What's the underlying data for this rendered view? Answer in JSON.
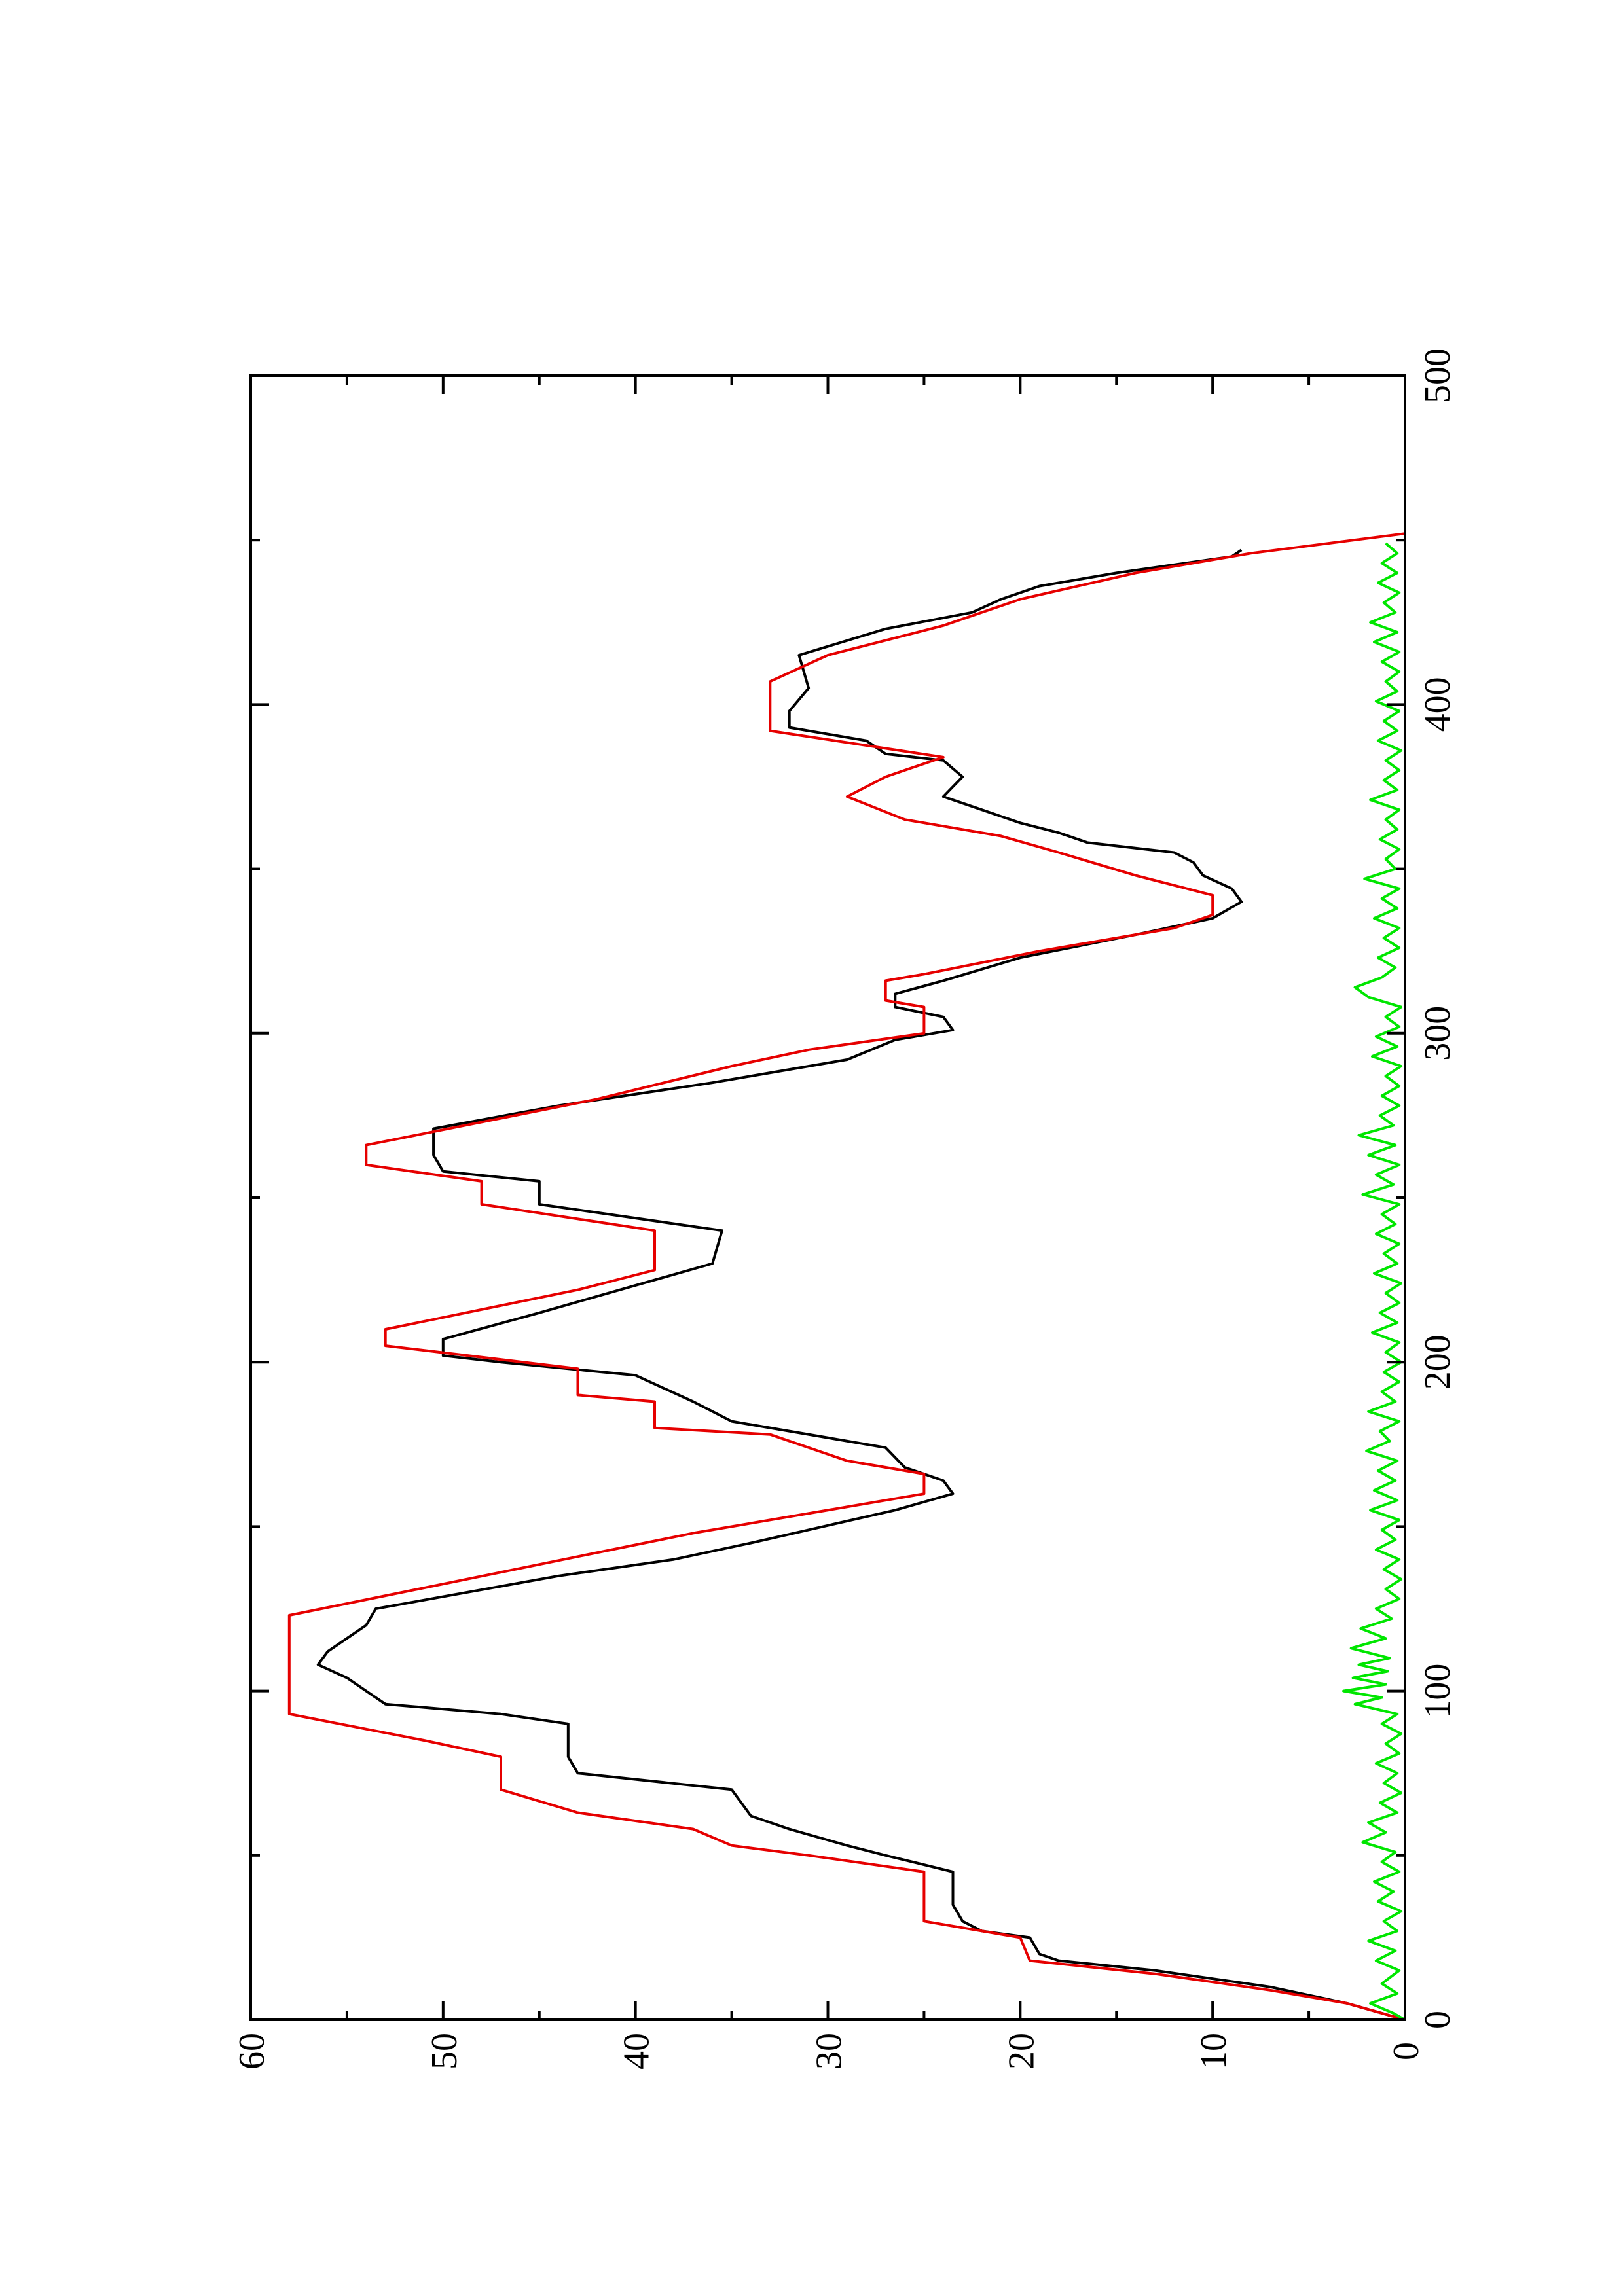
{
  "chart_data": {
    "type": "line",
    "orientation": "rotated 90 degrees counter-clockwise (x axis runs up the page)",
    "title": "",
    "xlabel": "",
    "ylabel": "",
    "xlim": [
      0,
      500
    ],
    "ylim": [
      0,
      60
    ],
    "x_ticks_major": [
      0,
      100,
      200,
      300,
      400,
      500
    ],
    "x_ticks_minor": [
      50,
      150,
      250,
      350,
      450
    ],
    "y_ticks_major": [
      0,
      10,
      20,
      30,
      40,
      50,
      60
    ],
    "y_ticks_minor": [
      5,
      15,
      25,
      35,
      45,
      55
    ],
    "grid": false,
    "legend": "none",
    "series": [
      {
        "color": "#000000",
        "points": [
          [
            0,
            0
          ],
          [
            5,
            3
          ],
          [
            10,
            7
          ],
          [
            15,
            13
          ],
          [
            18,
            18
          ],
          [
            20,
            19
          ],
          [
            25,
            19.5
          ],
          [
            27,
            22
          ],
          [
            30,
            23
          ],
          [
            35,
            23.5
          ],
          [
            45,
            23.5
          ],
          [
            50,
            27
          ],
          [
            53,
            29
          ],
          [
            58,
            32
          ],
          [
            62,
            34
          ],
          [
            70,
            35
          ],
          [
            75,
            43
          ],
          [
            80,
            43.5
          ],
          [
            90,
            43.5
          ],
          [
            93,
            47
          ],
          [
            96,
            53
          ],
          [
            100,
            54
          ],
          [
            104,
            55
          ],
          [
            108,
            56.5
          ],
          [
            112,
            56
          ],
          [
            116,
            55
          ],
          [
            120,
            54
          ],
          [
            125,
            53.5
          ],
          [
            135,
            44
          ],
          [
            140,
            38
          ],
          [
            145,
            34
          ],
          [
            155,
            26.5
          ],
          [
            160,
            23.5
          ],
          [
            164,
            24
          ],
          [
            168,
            26
          ],
          [
            174,
            27
          ],
          [
            182,
            35
          ],
          [
            188,
            37
          ],
          [
            196,
            40
          ],
          [
            200,
            47
          ],
          [
            202,
            50
          ],
          [
            207,
            50
          ],
          [
            215,
            45
          ],
          [
            225,
            39
          ],
          [
            230,
            36
          ],
          [
            240,
            35.5
          ],
          [
            248,
            45
          ],
          [
            255,
            45
          ],
          [
            258,
            50
          ],
          [
            263,
            50.5
          ],
          [
            271,
            50.5
          ],
          [
            278,
            44
          ],
          [
            285,
            36
          ],
          [
            292,
            29
          ],
          [
            298,
            26.5
          ],
          [
            301,
            23.5
          ],
          [
            305,
            24
          ],
          [
            308,
            26.5
          ],
          [
            312,
            26.5
          ],
          [
            316,
            24
          ],
          [
            323,
            20
          ],
          [
            330,
            14
          ],
          [
            335,
            10
          ],
          [
            340,
            8.5
          ],
          [
            344,
            9
          ],
          [
            348,
            10.5
          ],
          [
            352,
            11
          ],
          [
            355,
            12
          ],
          [
            358,
            16.5
          ],
          [
            361,
            18
          ],
          [
            364,
            20
          ],
          [
            368,
            22
          ],
          [
            372,
            24
          ],
          [
            378,
            23
          ],
          [
            383,
            24
          ],
          [
            385,
            27
          ],
          [
            389,
            28
          ],
          [
            393,
            32
          ],
          [
            398,
            32
          ],
          [
            405,
            31
          ],
          [
            415,
            31.5
          ],
          [
            423,
            27
          ],
          [
            428,
            22.5
          ],
          [
            432,
            21
          ],
          [
            436,
            19
          ],
          [
            440,
            15
          ],
          [
            445,
            9
          ],
          [
            447,
            8.5
          ]
        ]
      },
      {
        "color": "#e60000",
        "points": [
          [
            0,
            0
          ],
          [
            5,
            3
          ],
          [
            9,
            7
          ],
          [
            14,
            13
          ],
          [
            18,
            19.5
          ],
          [
            25,
            20
          ],
          [
            30,
            25
          ],
          [
            45,
            25
          ],
          [
            50,
            31
          ],
          [
            53,
            35
          ],
          [
            58,
            37
          ],
          [
            63,
            43
          ],
          [
            70,
            47
          ],
          [
            80,
            47
          ],
          [
            85,
            51
          ],
          [
            93,
            58
          ],
          [
            123,
            58
          ],
          [
            148,
            37
          ],
          [
            160,
            25
          ],
          [
            166,
            25
          ],
          [
            170,
            29
          ],
          [
            178,
            33
          ],
          [
            180,
            39
          ],
          [
            188,
            39
          ],
          [
            190,
            43
          ],
          [
            198,
            43
          ],
          [
            205,
            53
          ],
          [
            210,
            53
          ],
          [
            222,
            43
          ],
          [
            228,
            39
          ],
          [
            240,
            39
          ],
          [
            248,
            48
          ],
          [
            255,
            48
          ],
          [
            260,
            54
          ],
          [
            266,
            54
          ],
          [
            280,
            42
          ],
          [
            290,
            35
          ],
          [
            295,
            31
          ],
          [
            300,
            25
          ],
          [
            308,
            25
          ],
          [
            310,
            27
          ],
          [
            316,
            27
          ],
          [
            318,
            25
          ],
          [
            325,
            19
          ],
          [
            332,
            12
          ],
          [
            336,
            10
          ],
          [
            342,
            10
          ],
          [
            348,
            14
          ],
          [
            355,
            18
          ],
          [
            360,
            21
          ],
          [
            365,
            26
          ],
          [
            372,
            29
          ],
          [
            378,
            27
          ],
          [
            384,
            24
          ],
          [
            392,
            33
          ],
          [
            407,
            33
          ],
          [
            415,
            30
          ],
          [
            424,
            24
          ],
          [
            432,
            20
          ],
          [
            440,
            14
          ],
          [
            446,
            8
          ],
          [
            452,
            0
          ]
        ]
      },
      {
        "color": "#00e600",
        "points": [
          [
            0,
            0
          ],
          [
            2,
            0.6
          ],
          [
            5,
            1.8
          ],
          [
            8,
            0.4
          ],
          [
            11,
            1.2
          ],
          [
            15,
            0.3
          ],
          [
            18,
            1.5
          ],
          [
            21,
            0.5
          ],
          [
            24,
            1.9
          ],
          [
            27,
            0.4
          ],
          [
            30,
            1.1
          ],
          [
            33,
            0.2
          ],
          [
            36,
            1.4
          ],
          [
            39,
            0.6
          ],
          [
            42,
            1.6
          ],
          [
            45,
            0.3
          ],
          [
            48,
            1.2
          ],
          [
            51,
            0.5
          ],
          [
            54,
            2.2
          ],
          [
            57,
            1
          ],
          [
            60,
            1.9
          ],
          [
            63,
            0.4
          ],
          [
            66,
            1.3
          ],
          [
            69,
            0.2
          ],
          [
            72,
            1.1
          ],
          [
            75,
            0.4
          ],
          [
            78,
            1.5
          ],
          [
            81,
            0.3
          ],
          [
            84,
            1
          ],
          [
            87,
            0.2
          ],
          [
            90,
            1.2
          ],
          [
            93,
            0.4
          ],
          [
            96,
            2.6
          ],
          [
            98,
            1.2
          ],
          [
            100,
            3.2
          ],
          [
            102,
            1
          ],
          [
            104,
            2.7
          ],
          [
            106,
            0.9
          ],
          [
            108,
            2.4
          ],
          [
            110,
            0.8
          ],
          [
            113,
            2.8
          ],
          [
            116,
            1
          ],
          [
            119,
            2.3
          ],
          [
            122,
            0.7
          ],
          [
            125,
            1.5
          ],
          [
            128,
            0.3
          ],
          [
            131,
            1
          ],
          [
            134,
            0.2
          ],
          [
            137,
            1.1
          ],
          [
            140,
            0.3
          ],
          [
            143,
            1.5
          ],
          [
            146,
            0.5
          ],
          [
            149,
            1.2
          ],
          [
            152,
            0.3
          ],
          [
            155,
            1.8
          ],
          [
            158,
            0.4
          ],
          [
            161,
            1.6
          ],
          [
            164,
            0.5
          ],
          [
            167,
            1.4
          ],
          [
            170,
            0.4
          ],
          [
            173,
            2
          ],
          [
            176,
            0.8
          ],
          [
            179,
            1.3
          ],
          [
            182,
            0.3
          ],
          [
            185,
            1.9
          ],
          [
            188,
            0.5
          ],
          [
            191,
            1.2
          ],
          [
            194,
            0.3
          ],
          [
            197,
            1.1
          ],
          [
            200,
            0.2
          ],
          [
            203,
            1
          ],
          [
            206,
            0.3
          ],
          [
            209,
            1.7
          ],
          [
            212,
            0.4
          ],
          [
            215,
            1.3
          ],
          [
            218,
            0.3
          ],
          [
            221,
            1
          ],
          [
            224,
            0.2
          ],
          [
            227,
            1.6
          ],
          [
            230,
            0.4
          ],
          [
            233,
            1.1
          ],
          [
            236,
            0.3
          ],
          [
            239,
            1.5
          ],
          [
            242,
            0.5
          ],
          [
            245,
            1.2
          ],
          [
            248,
            0.3
          ],
          [
            251,
            2.2
          ],
          [
            254,
            0.6
          ],
          [
            257,
            1.5
          ],
          [
            260,
            0.3
          ],
          [
            263,
            1.9
          ],
          [
            266,
            0.5
          ],
          [
            269,
            2.4
          ],
          [
            272,
            0.6
          ],
          [
            275,
            1.3
          ],
          [
            278,
            0.3
          ],
          [
            281,
            1.2
          ],
          [
            284,
            0.3
          ],
          [
            287,
            1
          ],
          [
            290,
            0.2
          ],
          [
            293,
            1.7
          ],
          [
            296,
            0.4
          ],
          [
            299,
            1.5
          ],
          [
            302,
            0.3
          ],
          [
            305,
            1
          ],
          [
            308,
            0.2
          ],
          [
            311,
            1.9
          ],
          [
            314,
            2.6
          ],
          [
            317,
            1.2
          ],
          [
            320,
            0.5
          ],
          [
            323,
            1.4
          ],
          [
            326,
            0.3
          ],
          [
            329,
            1.1
          ],
          [
            332,
            0.3
          ],
          [
            335,
            1.6
          ],
          [
            338,
            0.4
          ],
          [
            341,
            1.2
          ],
          [
            344,
            0.3
          ],
          [
            347,
            2.1
          ],
          [
            350,
            0.5
          ],
          [
            353,
            1
          ],
          [
            356,
            0.3
          ],
          [
            359,
            1.3
          ],
          [
            362,
            0.4
          ],
          [
            365,
            1
          ],
          [
            368,
            0.3
          ],
          [
            371,
            1.8
          ],
          [
            374,
            0.4
          ],
          [
            377,
            1.1
          ],
          [
            380,
            0.3
          ],
          [
            383,
            1
          ],
          [
            386,
            0.2
          ],
          [
            389,
            1.4
          ],
          [
            392,
            0.4
          ],
          [
            395,
            1.1
          ],
          [
            398,
            0.3
          ],
          [
            401,
            1.5
          ],
          [
            404,
            0.4
          ],
          [
            407,
            1
          ],
          [
            410,
            0.3
          ],
          [
            413,
            1.2
          ],
          [
            416,
            0.3
          ],
          [
            419,
            1.6
          ],
          [
            422,
            0.4
          ],
          [
            425,
            1.8
          ],
          [
            428,
            0.5
          ],
          [
            431,
            1.1
          ],
          [
            434,
            0.3
          ],
          [
            437,
            1.4
          ],
          [
            440,
            0.4
          ],
          [
            443,
            1.2
          ],
          [
            446,
            0.4
          ],
          [
            449,
            1
          ]
        ]
      }
    ]
  }
}
